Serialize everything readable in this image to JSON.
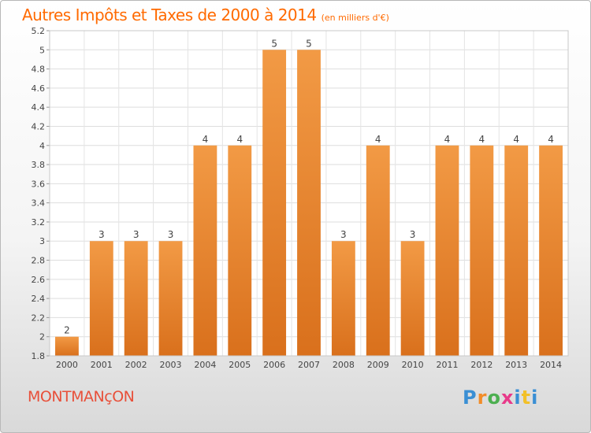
{
  "chart_data": {
    "type": "bar",
    "title": "Autres Impôts et Taxes de 2000 à 2014",
    "subtitle": "(en milliers d'€)",
    "xlabel": "",
    "ylabel": "",
    "categories": [
      "2000",
      "2001",
      "2002",
      "2003",
      "2004",
      "2005",
      "2006",
      "2007",
      "2008",
      "2009",
      "2010",
      "2011",
      "2012",
      "2013",
      "2014"
    ],
    "values": [
      2.0,
      3.0,
      3.0,
      3.0,
      4.0,
      4.0,
      5.0,
      5.0,
      3.0,
      4.0,
      3.0,
      4.0,
      4.0,
      4.0,
      4.0
    ],
    "value_labels": [
      "2",
      "3",
      "3",
      "3",
      "4",
      "4",
      "5",
      "5",
      "3",
      "4",
      "3",
      "4",
      "4",
      "4",
      "4"
    ],
    "ylim": [
      1.8,
      5.2
    ],
    "yticks": [
      1.8,
      2,
      2.2,
      2.4,
      2.6,
      2.8,
      3,
      3.2,
      3.4,
      3.6,
      3.8,
      4,
      4.2,
      4.4,
      4.6,
      4.8,
      5,
      5.2
    ],
    "ytick_labels": [
      "1.8",
      "2",
      "2.2",
      "2.4",
      "2.6",
      "2.8",
      "3",
      "3.2",
      "3.4",
      "3.6",
      "3.8",
      "4",
      "4.2",
      "4.4",
      "4.6",
      "4.8",
      "5",
      "5.2"
    ],
    "grid": true,
    "bar_color": "#f29a45",
    "bar_color_dark": "#d9701c"
  },
  "commune": "MONTMANçON",
  "logo": {
    "letters": [
      "P",
      "r",
      "o",
      "x",
      "i",
      "t",
      "i"
    ],
    "colors": [
      "#3a8fd4",
      "#f28c28",
      "#4caf50",
      "#e83a8a",
      "#3a8fd4",
      "#f2c028",
      "#3a8fd4"
    ]
  }
}
